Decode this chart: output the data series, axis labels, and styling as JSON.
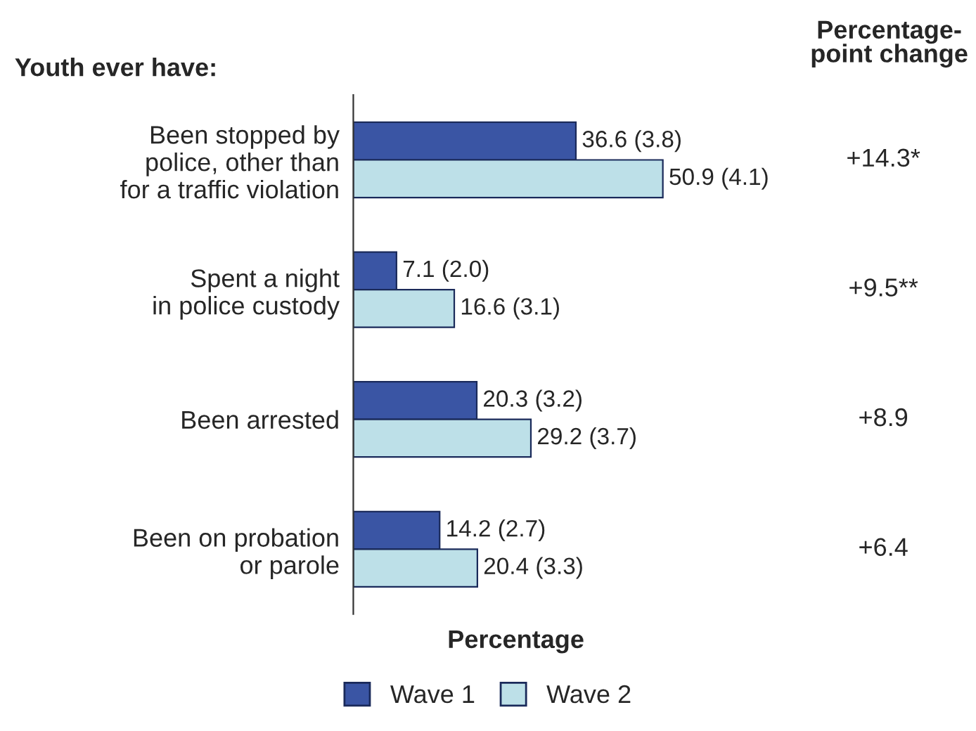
{
  "chart_data": {
    "type": "bar",
    "orientation": "horizontal",
    "ylabel": "Youth ever have:",
    "xlabel": "Percentage",
    "categories": [
      "Been stopped by\npolice, other than\nfor a traffic violation",
      "Spent a night\nin police custody",
      "Been arrested",
      "Been on probation\nor parole"
    ],
    "series": [
      {
        "name": "Wave 1",
        "color": "#3a55a4",
        "values": [
          36.6,
          7.1,
          20.3,
          14.2
        ],
        "value_labels": [
          "36.6 (3.8)",
          "7.1 (2.0)",
          "20.3 (3.2)",
          "14.2 (2.7)"
        ]
      },
      {
        "name": "Wave 2",
        "color": "#bde0e8",
        "values": [
          50.9,
          16.6,
          29.2,
          20.4
        ],
        "value_labels": [
          "50.9 (4.1)",
          "16.6 (3.1)",
          "29.2 (3.7)",
          "20.4 (3.3)"
        ]
      }
    ],
    "tick_labels": "y",
    "grid": false,
    "legend": "bottom",
    "annotations": [
      "Percentage-\npoint change",
      "+14.3*",
      "+9.5**",
      "+8.9",
      "+6.4"
    ]
  }
}
